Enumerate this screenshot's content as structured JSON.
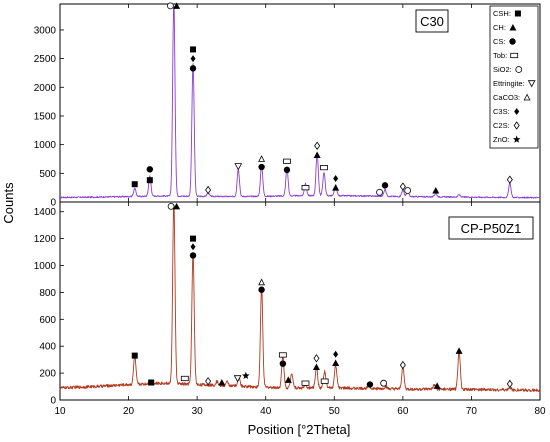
{
  "chart_data": {
    "type": "line",
    "xlabel": "Position [°2Theta]",
    "ylabel": "Counts",
    "xlim": [
      10,
      80
    ],
    "x_ticks": [
      10,
      20,
      30,
      40,
      50,
      60,
      70,
      80
    ],
    "grid": false,
    "legend_placement": "top-right",
    "legend": [
      {
        "label": "CSH:",
        "marker": "filled-square"
      },
      {
        "label": "CH:",
        "marker": "filled-triangle"
      },
      {
        "label": "CS:",
        "marker": "filled-circle"
      },
      {
        "label": "Tob:",
        "marker": "open-rectangle"
      },
      {
        "label": "SiO2:",
        "marker": "open-circle"
      },
      {
        "label": "Ettringite:",
        "marker": "open-down-triangle"
      },
      {
        "label": "CaCO3:",
        "marker": "delta"
      },
      {
        "label": "C3S:",
        "marker": "filled-diamond"
      },
      {
        "label": "C2S:",
        "marker": "open-diamond"
      },
      {
        "label": "ZnO:",
        "marker": "star"
      }
    ],
    "panels": [
      {
        "label": "C30",
        "color": "#8a3fd1",
        "ylim": [
          0,
          3400
        ],
        "y_ticks": [
          0,
          500,
          1000,
          1500,
          2000,
          2500,
          3000
        ],
        "baseline": [
          [
            10,
            80
          ],
          [
            15,
            85
          ],
          [
            20,
            95
          ],
          [
            25,
            105
          ],
          [
            30,
            100
          ],
          [
            35,
            95
          ],
          [
            40,
            100
          ],
          [
            45,
            110
          ],
          [
            50,
            110
          ],
          [
            55,
            105
          ],
          [
            60,
            95
          ],
          [
            65,
            90
          ],
          [
            70,
            85
          ],
          [
            75,
            80
          ],
          [
            80,
            75
          ]
        ],
        "peaks": [
          [
            20.9,
            140
          ],
          [
            23.1,
            350
          ],
          [
            26.6,
            3400
          ],
          [
            29.4,
            2300
          ],
          [
            31.6,
            60
          ],
          [
            36.0,
            480
          ],
          [
            39.4,
            540
          ],
          [
            43.1,
            470
          ],
          [
            45.8,
            210
          ],
          [
            47.5,
            730
          ],
          [
            48.5,
            400
          ],
          [
            50.2,
            180
          ],
          [
            57.4,
            120
          ],
          [
            60.0,
            110
          ],
          [
            60.7,
            80
          ],
          [
            64.8,
            60
          ],
          [
            68.2,
            40
          ],
          [
            75.6,
            250
          ]
        ],
        "annotations": [
          {
            "x": 20.9,
            "y": 310,
            "marker": "filled-square"
          },
          {
            "x": 23.1,
            "y": 380,
            "marker": "filled-square"
          },
          {
            "x": 23.1,
            "y": 570,
            "marker": "filled-circle"
          },
          {
            "x": 26.1,
            "y": 3420,
            "marker": "open-circle"
          },
          {
            "x": 27.0,
            "y": 3420,
            "marker": "filled-triangle"
          },
          {
            "x": 29.4,
            "y": 2660,
            "marker": "filled-square"
          },
          {
            "x": 29.4,
            "y": 2500,
            "marker": "filled-diamond"
          },
          {
            "x": 29.4,
            "y": 2330,
            "marker": "filled-circle"
          },
          {
            "x": 31.6,
            "y": 210,
            "marker": "open-diamond"
          },
          {
            "x": 36.0,
            "y": 620,
            "marker": "open-down-triangle"
          },
          {
            "x": 39.4,
            "y": 750,
            "marker": "delta"
          },
          {
            "x": 39.4,
            "y": 610,
            "marker": "filled-circle"
          },
          {
            "x": 43.1,
            "y": 710,
            "marker": "open-rectangle"
          },
          {
            "x": 43.1,
            "y": 560,
            "marker": "filled-circle"
          },
          {
            "x": 45.8,
            "y": 250,
            "marker": "open-rectangle"
          },
          {
            "x": 47.5,
            "y": 980,
            "marker": "open-diamond"
          },
          {
            "x": 47.5,
            "y": 820,
            "marker": "filled-triangle"
          },
          {
            "x": 48.5,
            "y": 600,
            "marker": "open-rectangle"
          },
          {
            "x": 50.2,
            "y": 410,
            "marker": "filled-diamond"
          },
          {
            "x": 50.2,
            "y": 250,
            "marker": "filled-triangle"
          },
          {
            "x": 56.6,
            "y": 170,
            "marker": "open-circle"
          },
          {
            "x": 57.4,
            "y": 290,
            "marker": "filled-circle"
          },
          {
            "x": 60.0,
            "y": 270,
            "marker": "open-diamond"
          },
          {
            "x": 60.7,
            "y": 200,
            "marker": "open-circle"
          },
          {
            "x": 64.8,
            "y": 200,
            "marker": "filled-triangle"
          },
          {
            "x": 75.6,
            "y": 390,
            "marker": "open-diamond"
          }
        ]
      },
      {
        "label": "CP-P50Z1",
        "color": "#b0391f",
        "ylim": [
          0,
          1450
        ],
        "y_ticks": [
          0,
          200,
          400,
          600,
          800,
          1000,
          1200,
          1400
        ],
        "baseline": [
          [
            10,
            90
          ],
          [
            15,
            100
          ],
          [
            20,
            115
          ],
          [
            25,
            125
          ],
          [
            30,
            115
          ],
          [
            35,
            105
          ],
          [
            40,
            95
          ],
          [
            45,
            90
          ],
          [
            50,
            90
          ],
          [
            55,
            85
          ],
          [
            60,
            80
          ],
          [
            65,
            80
          ],
          [
            70,
            78
          ],
          [
            75,
            75
          ],
          [
            80,
            72
          ]
        ],
        "peaks": [
          [
            20.9,
            210
          ],
          [
            23.1,
            20
          ],
          [
            26.6,
            1350
          ],
          [
            29.4,
            970
          ],
          [
            32.9,
            30
          ],
          [
            34.4,
            30
          ],
          [
            36.1,
            60
          ],
          [
            39.4,
            740
          ],
          [
            42.5,
            230
          ],
          [
            43.8,
            110
          ],
          [
            45.8,
            20
          ],
          [
            47.4,
            150
          ],
          [
            48.6,
            120
          ],
          [
            50.2,
            170
          ],
          [
            55.0,
            30
          ],
          [
            57.5,
            20
          ],
          [
            60.0,
            165
          ],
          [
            64.6,
            30
          ],
          [
            68.2,
            290
          ],
          [
            75.6,
            20
          ]
        ],
        "annotations": [
          {
            "x": 20.9,
            "y": 330,
            "marker": "filled-square"
          },
          {
            "x": 23.3,
            "y": 130,
            "marker": "filled-square"
          },
          {
            "x": 26.2,
            "y": 1440,
            "marker": "open-circle"
          },
          {
            "x": 27.0,
            "y": 1440,
            "marker": "filled-triangle"
          },
          {
            "x": 29.4,
            "y": 1200,
            "marker": "filled-square"
          },
          {
            "x": 29.4,
            "y": 1140,
            "marker": "filled-diamond"
          },
          {
            "x": 29.4,
            "y": 1075,
            "marker": "filled-circle"
          },
          {
            "x": 28.2,
            "y": 160,
            "marker": "open-rectangle"
          },
          {
            "x": 31.6,
            "y": 140,
            "marker": "open-diamond"
          },
          {
            "x": 33.6,
            "y": 130,
            "marker": "filled-triangle"
          },
          {
            "x": 35.9,
            "y": 160,
            "marker": "open-down-triangle"
          },
          {
            "x": 37.1,
            "y": 180,
            "marker": "star"
          },
          {
            "x": 39.4,
            "y": 875,
            "marker": "delta"
          },
          {
            "x": 39.4,
            "y": 820,
            "marker": "filled-circle"
          },
          {
            "x": 42.5,
            "y": 335,
            "marker": "open-rectangle"
          },
          {
            "x": 42.5,
            "y": 270,
            "marker": "filled-circle"
          },
          {
            "x": 43.3,
            "y": 150,
            "marker": "filled-triangle"
          },
          {
            "x": 45.8,
            "y": 125,
            "marker": "open-rectangle"
          },
          {
            "x": 47.4,
            "y": 310,
            "marker": "open-diamond"
          },
          {
            "x": 47.4,
            "y": 245,
            "marker": "filled-triangle"
          },
          {
            "x": 48.6,
            "y": 140,
            "marker": "open-rectangle"
          },
          {
            "x": 50.2,
            "y": 340,
            "marker": "filled-diamond"
          },
          {
            "x": 50.2,
            "y": 275,
            "marker": "filled-triangle"
          },
          {
            "x": 55.2,
            "y": 115,
            "marker": "filled-circle"
          },
          {
            "x": 57.2,
            "y": 125,
            "marker": "open-circle"
          },
          {
            "x": 60.0,
            "y": 260,
            "marker": "open-diamond"
          },
          {
            "x": 65.0,
            "y": 105,
            "marker": "filled-triangle"
          },
          {
            "x": 68.2,
            "y": 365,
            "marker": "filled-triangle"
          },
          {
            "x": 75.6,
            "y": 120,
            "marker": "open-diamond"
          }
        ]
      }
    ]
  }
}
